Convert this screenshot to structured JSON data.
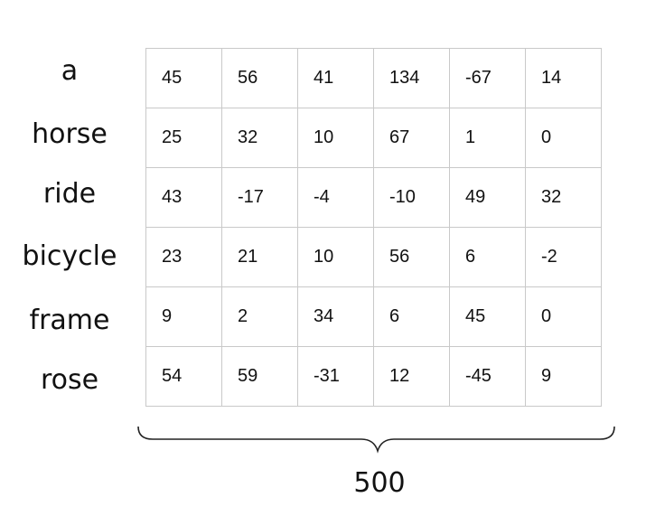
{
  "rows": [
    {
      "word": "a",
      "values": [
        "45",
        "56",
        "41",
        "134",
        "-67",
        "14"
      ]
    },
    {
      "word": "horse",
      "values": [
        "25",
        "32",
        "10",
        "67",
        "1",
        "0"
      ]
    },
    {
      "word": "ride",
      "values": [
        "43",
        "-17",
        "-4",
        "-10",
        "49",
        "32"
      ]
    },
    {
      "word": "bicycle",
      "values": [
        "23",
        "21",
        "10",
        "56",
        "6",
        "-2"
      ]
    },
    {
      "word": "frame",
      "values": [
        "9",
        "2",
        "34",
        "6",
        "45",
        "0"
      ]
    },
    {
      "word": "rose",
      "values": [
        "54",
        "59",
        "-31",
        "12",
        "-45",
        "9"
      ]
    }
  ],
  "dimension_label": "500"
}
